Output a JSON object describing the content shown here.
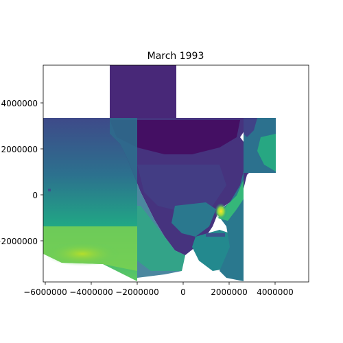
{
  "figure": {
    "title": "March 1993"
  },
  "axes": {
    "x_ticks": [
      "−6000000",
      "−4000000",
      "−2000000",
      "0",
      "2000000",
      "4000000"
    ],
    "y_ticks": [
      "−2000000",
      "0",
      "2000000",
      "4000000"
    ],
    "x_tick_values": [
      -6000000,
      -4000000,
      -2000000,
      0,
      2000000,
      4000000
    ],
    "y_tick_values": [
      -2000000,
      0,
      2000000,
      4000000
    ],
    "xlim": [
      -6100000,
      5500000
    ],
    "ylim": [
      -3800000,
      5700000
    ]
  },
  "colors": {
    "colormap": "viridis",
    "low": "#440154",
    "mid": "#21918c",
    "high": "#fde725"
  }
}
